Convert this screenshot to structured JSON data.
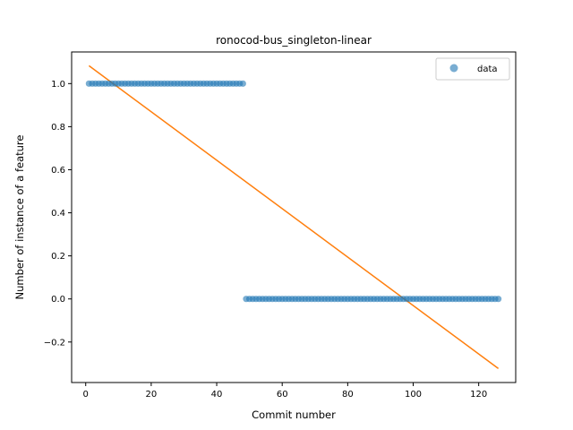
{
  "chart_data": {
    "type": "scatter",
    "title": "ronocod-bus_singleton-linear",
    "xlabel": "Commit number",
    "ylabel": "Number of instance of a feature",
    "xlim": [
      -4.3,
      131.3
    ],
    "ylim": [
      -0.3881,
      1.1469
    ],
    "xticks": [
      0,
      20,
      40,
      60,
      80,
      100,
      120
    ],
    "yticks": [
      -0.2,
      0.0,
      0.2,
      0.4,
      0.6,
      0.8,
      1.0
    ],
    "xtick_labels": [
      "0",
      "20",
      "40",
      "60",
      "80",
      "100",
      "120"
    ],
    "ytick_labels": [
      "−0.2",
      "0.0",
      "0.2",
      "0.4",
      "0.6",
      "0.8",
      "1.0"
    ],
    "legend": {
      "position": "upper right",
      "entries": [
        "data"
      ]
    },
    "series": [
      {
        "name": "data",
        "kind": "points",
        "color": "#1f77b4",
        "segments": [
          {
            "x_start": 1,
            "x_end": 48,
            "y": 1.0
          },
          {
            "x_start": 49,
            "x_end": 126,
            "y": 0.0
          }
        ]
      },
      {
        "kind": "line",
        "color": "#ff7f0e",
        "x": [
          1,
          126
        ],
        "y": [
          1.083,
          -0.323
        ]
      }
    ]
  }
}
